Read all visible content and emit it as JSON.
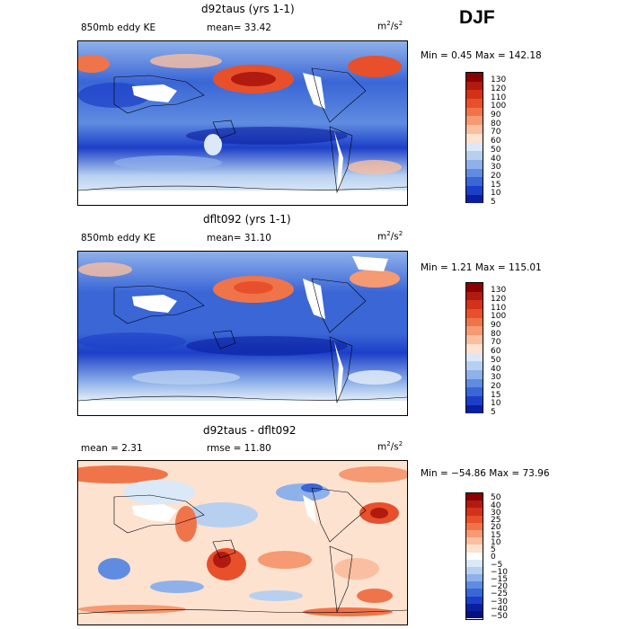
{
  "season": "DJF",
  "panels": [
    {
      "title": "d92taus (yrs 1-1)",
      "left_label": "850mb eddy KE",
      "mean_text": "mean=  33.42",
      "units_base": "m",
      "units_sup": "2",
      "units_tail": "/s",
      "units_sup2": "2",
      "minmax": "Min =   0.45 Max = 142.18",
      "levels": [
        "130",
        "120",
        "110",
        "100",
        "90",
        "80",
        "70",
        "60",
        "50",
        "40",
        "30",
        "20",
        "15",
        "10",
        "5"
      ],
      "colors": [
        "#8b0000",
        "#b11a0e",
        "#d2321a",
        "#e8502b",
        "#f0744a",
        "#f59a72",
        "#f9bfa0",
        "#fde2d0",
        "#dbe8f7",
        "#b7d0f0",
        "#8fb1ea",
        "#5f8ce0",
        "#3a66d6",
        "#1c3fc8",
        "#0a1fa0"
      ]
    },
    {
      "title": "dflt092 (yrs 1-1)",
      "left_label": "850mb eddy KE",
      "mean_text": "mean=  31.10",
      "units_base": "m",
      "units_sup": "2",
      "units_tail": "/s",
      "units_sup2": "2",
      "minmax": "Min =   1.21 Max = 115.01",
      "levels": [
        "130",
        "120",
        "110",
        "100",
        "90",
        "80",
        "70",
        "60",
        "50",
        "40",
        "30",
        "20",
        "15",
        "10",
        "5"
      ],
      "colors": [
        "#8b0000",
        "#b11a0e",
        "#d2321a",
        "#e8502b",
        "#f0744a",
        "#f59a72",
        "#f9bfa0",
        "#fde2d0",
        "#dbe8f7",
        "#b7d0f0",
        "#8fb1ea",
        "#5f8ce0",
        "#3a66d6",
        "#1c3fc8",
        "#0a1fa0"
      ]
    },
    {
      "title": "d92taus - dflt092",
      "left_label": "mean =    2.31",
      "mean_text": "rmse =  11.80",
      "units_base": "m",
      "units_sup": "2",
      "units_tail": "/s",
      "units_sup2": "2",
      "minmax": "Min = −54.86 Max =  73.96",
      "levels": [
        "50",
        "40",
        "30",
        "25",
        "20",
        "15",
        "10",
        "5",
        "0",
        "−5",
        "−10",
        "−15",
        "−20",
        "−25",
        "−30",
        "−40",
        "−50"
      ],
      "colors": [
        "#8b0000",
        "#b11a0e",
        "#d2321a",
        "#e8502b",
        "#f0744a",
        "#f59a72",
        "#f9bfa0",
        "#fde2d0",
        "#ffffff",
        "#dbe8f7",
        "#b7d0f0",
        "#8fb1ea",
        "#5f8ce0",
        "#3a66d6",
        "#1c3fc8",
        "#0a1fa0",
        "#050f80"
      ]
    }
  ]
}
